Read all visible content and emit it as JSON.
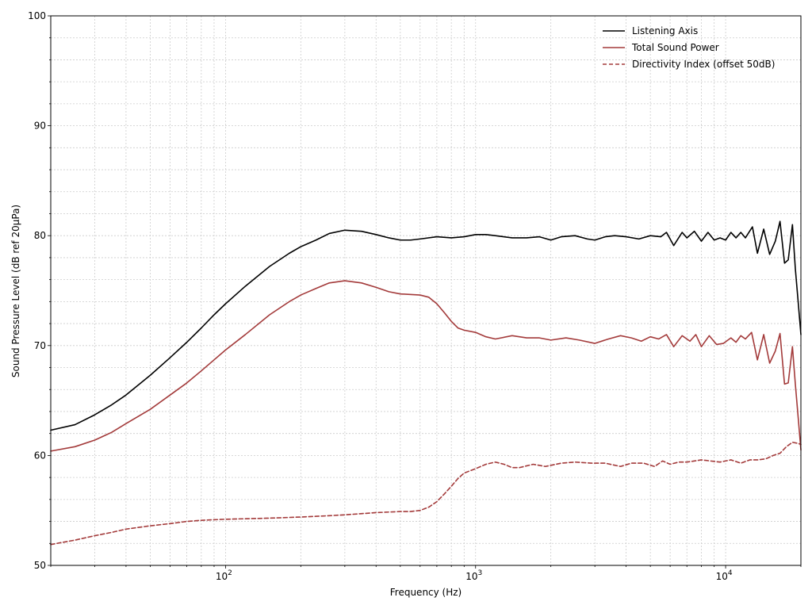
{
  "chart_data": {
    "type": "line",
    "title": "",
    "xlabel": "Frequency (Hz)",
    "ylabel": "Sound Pressure Level (dB ref 20µPa)",
    "xscale": "log",
    "xlim": [
      20,
      20000
    ],
    "ylim": [
      50,
      100
    ],
    "xticks": [
      {
        "value": 100,
        "base": "10",
        "exp": "2"
      },
      {
        "value": 1000,
        "base": "10",
        "exp": "3"
      },
      {
        "value": 10000,
        "base": "10",
        "exp": "4"
      }
    ],
    "yticks": [
      {
        "value": 50,
        "label": "50"
      },
      {
        "value": 60,
        "label": "60"
      },
      {
        "value": 70,
        "label": "70"
      },
      {
        "value": 80,
        "label": "80"
      },
      {
        "value": 90,
        "label": "90"
      },
      {
        "value": 100,
        "label": "100"
      }
    ],
    "grid": true,
    "legend_position": "top-right",
    "series": [
      {
        "name": "Listening Axis",
        "color": "#000000",
        "style": "solid",
        "points": [
          [
            20,
            62.3
          ],
          [
            25,
            62.8
          ],
          [
            30,
            63.7
          ],
          [
            35,
            64.6
          ],
          [
            40,
            65.5
          ],
          [
            50,
            67.3
          ],
          [
            60,
            68.9
          ],
          [
            70,
            70.3
          ],
          [
            80,
            71.6
          ],
          [
            90,
            72.8
          ],
          [
            100,
            73.8
          ],
          [
            120,
            75.4
          ],
          [
            150,
            77.2
          ],
          [
            180,
            78.4
          ],
          [
            200,
            79.0
          ],
          [
            230,
            79.6
          ],
          [
            260,
            80.2
          ],
          [
            300,
            80.5
          ],
          [
            350,
            80.4
          ],
          [
            400,
            80.1
          ],
          [
            450,
            79.8
          ],
          [
            500,
            79.6
          ],
          [
            550,
            79.6
          ],
          [
            600,
            79.7
          ],
          [
            700,
            79.9
          ],
          [
            800,
            79.8
          ],
          [
            900,
            79.9
          ],
          [
            1000,
            80.1
          ],
          [
            1100,
            80.1
          ],
          [
            1200,
            80.0
          ],
          [
            1400,
            79.8
          ],
          [
            1600,
            79.8
          ],
          [
            1800,
            79.9
          ],
          [
            2000,
            79.6
          ],
          [
            2200,
            79.9
          ],
          [
            2500,
            80.0
          ],
          [
            2800,
            79.7
          ],
          [
            3000,
            79.6
          ],
          [
            3300,
            79.9
          ],
          [
            3600,
            80.0
          ],
          [
            4000,
            79.9
          ],
          [
            4500,
            79.7
          ],
          [
            5000,
            80.0
          ],
          [
            5500,
            79.9
          ],
          [
            5800,
            80.3
          ],
          [
            6200,
            79.1
          ],
          [
            6700,
            80.3
          ],
          [
            7000,
            79.8
          ],
          [
            7500,
            80.4
          ],
          [
            8000,
            79.5
          ],
          [
            8500,
            80.3
          ],
          [
            9000,
            79.6
          ],
          [
            9500,
            79.8
          ],
          [
            10000,
            79.6
          ],
          [
            10500,
            80.3
          ],
          [
            11000,
            79.8
          ],
          [
            11500,
            80.3
          ],
          [
            12000,
            79.8
          ],
          [
            12800,
            80.8
          ],
          [
            13400,
            78.4
          ],
          [
            14200,
            80.6
          ],
          [
            15000,
            78.3
          ],
          [
            15800,
            79.5
          ],
          [
            16500,
            81.3
          ],
          [
            17200,
            77.5
          ],
          [
            17800,
            77.8
          ],
          [
            18500,
            81.0
          ],
          [
            19000,
            77.0
          ],
          [
            19500,
            74.0
          ],
          [
            20000,
            71.0
          ]
        ]
      },
      {
        "name": "Total Sound Power",
        "color": "#a33a3a",
        "style": "solid",
        "points": [
          [
            20,
            60.4
          ],
          [
            25,
            60.8
          ],
          [
            30,
            61.4
          ],
          [
            35,
            62.1
          ],
          [
            40,
            62.9
          ],
          [
            50,
            64.2
          ],
          [
            60,
            65.5
          ],
          [
            70,
            66.6
          ],
          [
            80,
            67.7
          ],
          [
            90,
            68.7
          ],
          [
            100,
            69.6
          ],
          [
            120,
            71.0
          ],
          [
            150,
            72.8
          ],
          [
            180,
            74.0
          ],
          [
            200,
            74.6
          ],
          [
            230,
            75.2
          ],
          [
            260,
            75.7
          ],
          [
            300,
            75.9
          ],
          [
            350,
            75.7
          ],
          [
            400,
            75.3
          ],
          [
            450,
            74.9
          ],
          [
            500,
            74.7
          ],
          [
            600,
            74.6
          ],
          [
            650,
            74.4
          ],
          [
            700,
            73.8
          ],
          [
            750,
            73.0
          ],
          [
            800,
            72.2
          ],
          [
            850,
            71.6
          ],
          [
            900,
            71.4
          ],
          [
            1000,
            71.2
          ],
          [
            1100,
            70.8
          ],
          [
            1200,
            70.6
          ],
          [
            1400,
            70.9
          ],
          [
            1600,
            70.7
          ],
          [
            1800,
            70.7
          ],
          [
            2000,
            70.5
          ],
          [
            2300,
            70.7
          ],
          [
            2600,
            70.5
          ],
          [
            3000,
            70.2
          ],
          [
            3400,
            70.6
          ],
          [
            3800,
            70.9
          ],
          [
            4200,
            70.7
          ],
          [
            4600,
            70.4
          ],
          [
            5000,
            70.8
          ],
          [
            5400,
            70.6
          ],
          [
            5800,
            71.0
          ],
          [
            6200,
            69.9
          ],
          [
            6700,
            70.9
          ],
          [
            7200,
            70.4
          ],
          [
            7600,
            71.0
          ],
          [
            8000,
            69.9
          ],
          [
            8600,
            70.9
          ],
          [
            9200,
            70.1
          ],
          [
            9800,
            70.2
          ],
          [
            10500,
            70.7
          ],
          [
            11000,
            70.3
          ],
          [
            11500,
            70.9
          ],
          [
            12000,
            70.6
          ],
          [
            12700,
            71.2
          ],
          [
            13400,
            68.7
          ],
          [
            14200,
            71.0
          ],
          [
            15000,
            68.4
          ],
          [
            15800,
            69.5
          ],
          [
            16500,
            71.1
          ],
          [
            17200,
            66.5
          ],
          [
            17800,
            66.6
          ],
          [
            18500,
            69.9
          ],
          [
            19000,
            66.5
          ],
          [
            19500,
            63.5
          ],
          [
            20000,
            60.5
          ]
        ]
      },
      {
        "name": "Directivity Index (offset 50dB)",
        "color": "#a33a3a",
        "style": "dashed",
        "points": [
          [
            20,
            51.9
          ],
          [
            25,
            52.3
          ],
          [
            30,
            52.7
          ],
          [
            35,
            53.0
          ],
          [
            40,
            53.3
          ],
          [
            50,
            53.6
          ],
          [
            60,
            53.8
          ],
          [
            70,
            54.0
          ],
          [
            80,
            54.1
          ],
          [
            100,
            54.2
          ],
          [
            150,
            54.3
          ],
          [
            200,
            54.4
          ],
          [
            250,
            54.5
          ],
          [
            300,
            54.6
          ],
          [
            400,
            54.8
          ],
          [
            500,
            54.9
          ],
          [
            550,
            54.9
          ],
          [
            600,
            55.0
          ],
          [
            650,
            55.3
          ],
          [
            700,
            55.8
          ],
          [
            750,
            56.5
          ],
          [
            800,
            57.2
          ],
          [
            850,
            57.9
          ],
          [
            900,
            58.4
          ],
          [
            1000,
            58.8
          ],
          [
            1100,
            59.2
          ],
          [
            1200,
            59.4
          ],
          [
            1300,
            59.2
          ],
          [
            1400,
            58.9
          ],
          [
            1500,
            58.9
          ],
          [
            1700,
            59.2
          ],
          [
            1900,
            59.0
          ],
          [
            2200,
            59.3
          ],
          [
            2500,
            59.4
          ],
          [
            2900,
            59.3
          ],
          [
            3300,
            59.3
          ],
          [
            3800,
            59.0
          ],
          [
            4200,
            59.3
          ],
          [
            4700,
            59.3
          ],
          [
            5200,
            59.0
          ],
          [
            5600,
            59.5
          ],
          [
            6000,
            59.2
          ],
          [
            6500,
            59.4
          ],
          [
            7000,
            59.4
          ],
          [
            7500,
            59.5
          ],
          [
            8000,
            59.6
          ],
          [
            8700,
            59.5
          ],
          [
            9500,
            59.4
          ],
          [
            10500,
            59.6
          ],
          [
            11500,
            59.3
          ],
          [
            12500,
            59.6
          ],
          [
            13500,
            59.6
          ],
          [
            14500,
            59.7
          ],
          [
            15500,
            60.0
          ],
          [
            16500,
            60.2
          ],
          [
            17500,
            60.8
          ],
          [
            18500,
            61.2
          ],
          [
            19500,
            61.1
          ],
          [
            20000,
            61.0
          ]
        ]
      }
    ]
  }
}
